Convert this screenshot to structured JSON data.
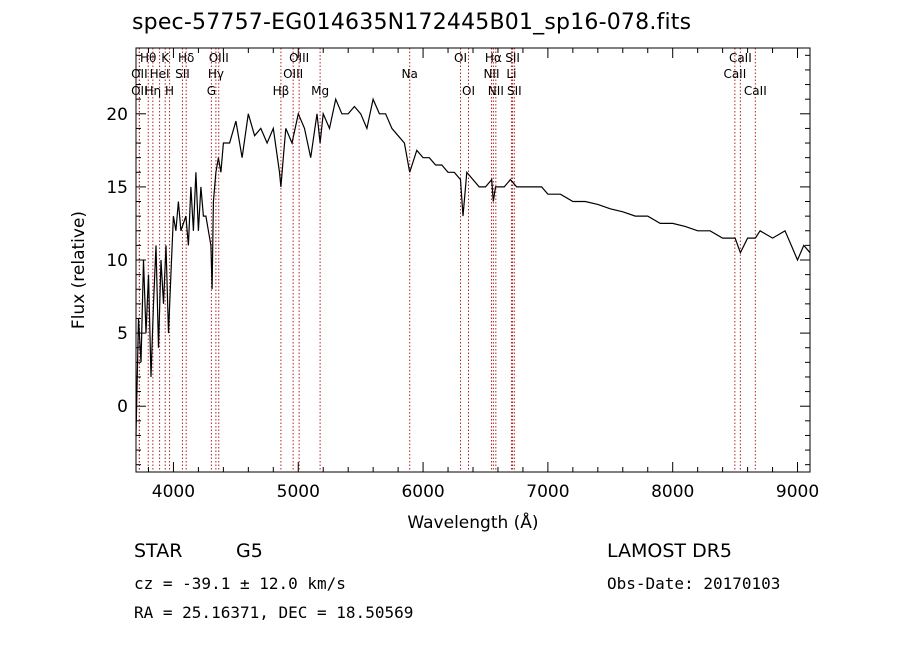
{
  "chart_data": {
    "type": "line",
    "title": "spec-57757-EG014635N172445B01_sp16-078.fits",
    "xlabel": "Wavelength (Å)",
    "ylabel": "Flux (relative)",
    "xlim": [
      3700,
      9100
    ],
    "ylim": [
      -4.5,
      24.5
    ],
    "xticks": [
      4000,
      5000,
      6000,
      7000,
      8000,
      9000
    ],
    "yticks": [
      0,
      5,
      10,
      15,
      20
    ],
    "grid": false,
    "line_color": "#000000",
    "marker_color": "#b22222",
    "series": [
      {
        "x": [
          3700,
          3720,
          3740,
          3760,
          3780,
          3800,
          3820,
          3840,
          3860,
          3880,
          3900,
          3920,
          3940,
          3960,
          3980,
          4000,
          4020,
          4040,
          4060,
          4080,
          4100,
          4120,
          4140,
          4160,
          4180,
          4200,
          4220,
          4240,
          4260,
          4280,
          4300,
          4310,
          4320,
          4340,
          4360,
          4380,
          4400,
          4450,
          4500,
          4550,
          4600,
          4650,
          4700,
          4750,
          4800,
          4850,
          4861,
          4880,
          4900,
          4950,
          5000,
          5050,
          5100,
          5150,
          5175,
          5200,
          5250,
          5300,
          5350,
          5400,
          5450,
          5500,
          5550,
          5600,
          5650,
          5700,
          5750,
          5800,
          5850,
          5893,
          5950,
          6000,
          6050,
          6100,
          6150,
          6200,
          6250,
          6300,
          6320,
          6350,
          6400,
          6450,
          6500,
          6550,
          6563,
          6580,
          6600,
          6650,
          6700,
          6750,
          6800,
          6850,
          6900,
          6950,
          7000,
          7100,
          7200,
          7300,
          7400,
          7500,
          7600,
          7700,
          7800,
          7900,
          8000,
          8100,
          8200,
          8300,
          8400,
          8500,
          8542,
          8600,
          8662,
          8700,
          8800,
          8900,
          8950,
          9000,
          9050,
          9100
        ],
        "y": [
          -2,
          6,
          3,
          10,
          5,
          9,
          2,
          7,
          11,
          4,
          10,
          7,
          11,
          5,
          9,
          13,
          12,
          14,
          12,
          12.5,
          13,
          11,
          15,
          12,
          16,
          12,
          15,
          13,
          13,
          12,
          11,
          8,
          14,
          16,
          17,
          16,
          18,
          18,
          19.5,
          17,
          20,
          18.5,
          19,
          18,
          19,
          16,
          15,
          17,
          19,
          18,
          20,
          19,
          17,
          20,
          18,
          20,
          19,
          21,
          20,
          20,
          20.5,
          20,
          19,
          21,
          20,
          20,
          19,
          18.5,
          18,
          16,
          17.5,
          17,
          17,
          16.5,
          16.5,
          16,
          16,
          15.5,
          13,
          16,
          15.5,
          15,
          15,
          15.5,
          14,
          15,
          15,
          15,
          15.5,
          15,
          15,
          15,
          15,
          15,
          14.5,
          14.5,
          14,
          14,
          13.8,
          13.5,
          13.3,
          13,
          13,
          12.5,
          12.5,
          12.3,
          12,
          12,
          11.5,
          11.5,
          10.5,
          11.5,
          11.5,
          12,
          11.5,
          12,
          11,
          10,
          11,
          10.5
        ]
      }
    ],
    "lines": [
      {
        "label": "Hθ",
        "x": 3798,
        "row": 1
      },
      {
        "label": "OII",
        "x": 3727,
        "row": 2
      },
      {
        "label": "OII",
        "x": 3727,
        "row": 3
      },
      {
        "label": "Hη",
        "x": 3835,
        "row": 3
      },
      {
        "label": "HeI",
        "x": 3889,
        "row": 2
      },
      {
        "label": "K",
        "x": 3934,
        "row": 1
      },
      {
        "label": "H",
        "x": 3969,
        "row": 3
      },
      {
        "label": "SII",
        "x": 4072,
        "row": 2
      },
      {
        "label": "Hδ",
        "x": 4102,
        "row": 1
      },
      {
        "label": "OIII",
        "x": 4363,
        "row": 1
      },
      {
        "label": "Hγ",
        "x": 4340,
        "row": 2
      },
      {
        "label": "G",
        "x": 4304,
        "row": 3
      },
      {
        "label": "Hβ",
        "x": 4861,
        "row": 3
      },
      {
        "label": "OIII",
        "x": 5007,
        "row": 1
      },
      {
        "label": "OIII",
        "x": 4959,
        "row": 2
      },
      {
        "label": "Mg",
        "x": 5175,
        "row": 3
      },
      {
        "label": "Na",
        "x": 5893,
        "row": 2
      },
      {
        "label": "OI",
        "x": 6300,
        "row": 1
      },
      {
        "label": "OI",
        "x": 6364,
        "row": 3
      },
      {
        "label": "Hα",
        "x": 6563,
        "row": 1
      },
      {
        "label": "NII",
        "x": 6548,
        "row": 2
      },
      {
        "label": "NII",
        "x": 6583,
        "row": 3
      },
      {
        "label": "SII",
        "x": 6717,
        "row": 1
      },
      {
        "label": "Li",
        "x": 6708,
        "row": 2
      },
      {
        "label": "SII",
        "x": 6731,
        "row": 3
      },
      {
        "label": "CaII",
        "x": 8542,
        "row": 1
      },
      {
        "label": "CaII",
        "x": 8498,
        "row": 2
      },
      {
        "label": "CaII",
        "x": 8662,
        "row": 3
      }
    ]
  },
  "footer": {
    "class_label": "STAR",
    "subclass": "G5",
    "survey": "LAMOST DR5",
    "cz": "cz = -39.1 ± 12.0 km/s",
    "obs_date": "Obs-Date: 20170103",
    "coords": "RA =  25.16371, DEC =  18.50569"
  }
}
